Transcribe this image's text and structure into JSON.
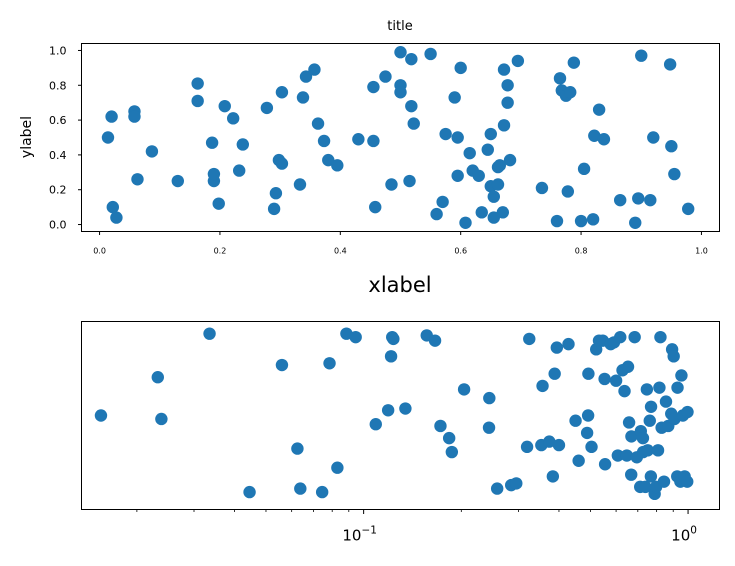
{
  "chart_data": [
    {
      "type": "scatter",
      "title": "title",
      "xlabel": "xlabel",
      "ylabel": "ylabel",
      "xlim": [
        -0.03,
        1.03
      ],
      "ylim": [
        -0.04,
        1.04
      ],
      "xticks": [
        {
          "value": 0.0,
          "label": "0.0"
        },
        {
          "value": 0.2,
          "label": "0.2"
        },
        {
          "value": 0.4,
          "label": "0.4"
        },
        {
          "value": 0.6,
          "label": "0.6"
        },
        {
          "value": 0.8,
          "label": "0.8"
        },
        {
          "value": 1.0,
          "label": "1.0"
        }
      ],
      "yticks": [
        {
          "value": 0.0,
          "label": "0.0"
        },
        {
          "value": 0.2,
          "label": "0.2"
        },
        {
          "value": 0.4,
          "label": "0.4"
        },
        {
          "value": 0.6,
          "label": "0.6"
        },
        {
          "value": 0.8,
          "label": "0.8"
        },
        {
          "value": 1.0,
          "label": "1.0"
        }
      ],
      "grid": false,
      "color": "#1f77b4",
      "points": [
        [
          0.014,
          0.5
        ],
        [
          0.02,
          0.62
        ],
        [
          0.022,
          0.1
        ],
        [
          0.028,
          0.04
        ],
        [
          0.058,
          0.65
        ],
        [
          0.058,
          0.62
        ],
        [
          0.063,
          0.26
        ],
        [
          0.087,
          0.42
        ],
        [
          0.13,
          0.25
        ],
        [
          0.163,
          0.81
        ],
        [
          0.163,
          0.71
        ],
        [
          0.187,
          0.47
        ],
        [
          0.19,
          0.25
        ],
        [
          0.19,
          0.29
        ],
        [
          0.198,
          0.12
        ],
        [
          0.208,
          0.68
        ],
        [
          0.222,
          0.61
        ],
        [
          0.232,
          0.31
        ],
        [
          0.238,
          0.46
        ],
        [
          0.278,
          0.67
        ],
        [
          0.29,
          0.09
        ],
        [
          0.293,
          0.18
        ],
        [
          0.298,
          0.37
        ],
        [
          0.303,
          0.76
        ],
        [
          0.303,
          0.35
        ],
        [
          0.333,
          0.23
        ],
        [
          0.338,
          0.73
        ],
        [
          0.343,
          0.85
        ],
        [
          0.357,
          0.89
        ],
        [
          0.363,
          0.58
        ],
        [
          0.373,
          0.48
        ],
        [
          0.38,
          0.37
        ],
        [
          0.395,
          0.34
        ],
        [
          0.43,
          0.49
        ],
        [
          0.455,
          0.79
        ],
        [
          0.455,
          0.48
        ],
        [
          0.458,
          0.1
        ],
        [
          0.475,
          0.85
        ],
        [
          0.485,
          0.23
        ],
        [
          0.5,
          0.99
        ],
        [
          0.5,
          0.8
        ],
        [
          0.5,
          0.76
        ],
        [
          0.515,
          0.25
        ],
        [
          0.518,
          0.95
        ],
        [
          0.518,
          0.68
        ],
        [
          0.522,
          0.58
        ],
        [
          0.55,
          0.98
        ],
        [
          0.56,
          0.06
        ],
        [
          0.57,
          0.13
        ],
        [
          0.575,
          0.52
        ],
        [
          0.59,
          0.73
        ],
        [
          0.595,
          0.28
        ],
        [
          0.595,
          0.5
        ],
        [
          0.6,
          0.9
        ],
        [
          0.608,
          0.01
        ],
        [
          0.615,
          0.41
        ],
        [
          0.62,
          0.31
        ],
        [
          0.63,
          0.28
        ],
        [
          0.635,
          0.07
        ],
        [
          0.645,
          0.43
        ],
        [
          0.65,
          0.22
        ],
        [
          0.65,
          0.52
        ],
        [
          0.655,
          0.04
        ],
        [
          0.655,
          0.16
        ],
        [
          0.662,
          0.33
        ],
        [
          0.662,
          0.23
        ],
        [
          0.665,
          0.34
        ],
        [
          0.67,
          0.07
        ],
        [
          0.672,
          0.89
        ],
        [
          0.672,
          0.57
        ],
        [
          0.678,
          0.8
        ],
        [
          0.678,
          0.7
        ],
        [
          0.682,
          0.37
        ],
        [
          0.695,
          0.94
        ],
        [
          0.735,
          0.21
        ],
        [
          0.76,
          0.02
        ],
        [
          0.765,
          0.84
        ],
        [
          0.768,
          0.77
        ],
        [
          0.775,
          0.74
        ],
        [
          0.778,
          0.19
        ],
        [
          0.782,
          0.76
        ],
        [
          0.788,
          0.93
        ],
        [
          0.8,
          0.02
        ],
        [
          0.805,
          0.32
        ],
        [
          0.82,
          0.03
        ],
        [
          0.822,
          0.51
        ],
        [
          0.83,
          0.66
        ],
        [
          0.838,
          0.49
        ],
        [
          0.865,
          0.14
        ],
        [
          0.89,
          0.01
        ],
        [
          0.895,
          0.15
        ],
        [
          0.9,
          0.97
        ],
        [
          0.915,
          0.14
        ],
        [
          0.92,
          0.5
        ],
        [
          0.948,
          0.92
        ],
        [
          0.95,
          0.45
        ],
        [
          0.955,
          0.29
        ],
        [
          0.978,
          0.09
        ]
      ]
    },
    {
      "type": "scatter",
      "xscale": "log",
      "xlim": [
        0.0135,
        1.25
      ],
      "ylim": [
        -0.04,
        1.04
      ],
      "xticks": [
        {
          "value": 0.1,
          "base": "10",
          "exp": "−1"
        },
        {
          "value": 1.0,
          "base": "10",
          "exp": "0"
        }
      ],
      "yticks": [],
      "grid": false,
      "color": "#1f77b4",
      "points": [
        [
          0.0155,
          0.5
        ],
        [
          0.0232,
          0.72
        ],
        [
          0.0238,
          0.48
        ],
        [
          0.0335,
          0.97
        ],
        [
          0.0445,
          0.06
        ],
        [
          0.056,
          0.79
        ],
        [
          0.0625,
          0.31
        ],
        [
          0.0638,
          0.08
        ],
        [
          0.0745,
          0.06
        ],
        [
          0.0785,
          0.8
        ],
        [
          0.083,
          0.2
        ],
        [
          0.0885,
          0.97
        ],
        [
          0.0945,
          0.95
        ],
        [
          0.109,
          0.45
        ],
        [
          0.119,
          0.53
        ],
        [
          0.1215,
          0.84
        ],
        [
          0.1225,
          0.95
        ],
        [
          0.1235,
          0.94
        ],
        [
          0.1345,
          0.54
        ],
        [
          0.1565,
          0.96
        ],
        [
          0.166,
          0.93
        ],
        [
          0.1725,
          0.44
        ],
        [
          0.1835,
          0.37
        ],
        [
          0.187,
          0.29
        ],
        [
          0.204,
          0.65
        ],
        [
          0.2435,
          0.43
        ],
        [
          0.244,
          0.6
        ],
        [
          0.258,
          0.08
        ],
        [
          0.285,
          0.1
        ],
        [
          0.2955,
          0.11
        ],
        [
          0.319,
          0.32
        ],
        [
          0.324,
          0.94
        ],
        [
          0.353,
          0.33
        ],
        [
          0.356,
          0.67
        ],
        [
          0.3735,
          0.35
        ],
        [
          0.383,
          0.15
        ],
        [
          0.388,
          0.74
        ],
        [
          0.394,
          0.89
        ],
        [
          0.4,
          0.33
        ],
        [
          0.428,
          0.91
        ],
        [
          0.45,
          0.47
        ],
        [
          0.46,
          0.24
        ],
        [
          0.4885,
          0.4
        ],
        [
          0.492,
          0.5
        ],
        [
          0.493,
          0.74
        ],
        [
          0.504,
          0.32
        ],
        [
          0.521,
          0.88
        ],
        [
          0.5315,
          0.93
        ],
        [
          0.546,
          0.93
        ],
        [
          0.553,
          0.71
        ],
        [
          0.555,
          0.22
        ],
        [
          0.5775,
          0.91
        ],
        [
          0.591,
          0.92
        ],
        [
          0.6,
          0.7
        ],
        [
          0.6075,
          0.27
        ],
        [
          0.618,
          0.95
        ],
        [
          0.628,
          0.76
        ],
        [
          0.637,
          0.64
        ],
        [
          0.6475,
          0.27
        ],
        [
          0.653,
          0.78
        ],
        [
          0.658,
          0.46
        ],
        [
          0.668,
          0.16
        ],
        [
          0.669,
          0.38
        ],
        [
          0.6845,
          0.95
        ],
        [
          0.695,
          0.26
        ],
        [
          0.712,
          0.09
        ],
        [
          0.715,
          0.41
        ],
        [
          0.726,
          0.37
        ],
        [
          0.727,
          0.29
        ],
        [
          0.7385,
          0.09
        ],
        [
          0.7465,
          0.65
        ],
        [
          0.751,
          0.3
        ],
        [
          0.762,
          0.47
        ],
        [
          0.768,
          0.15
        ],
        [
          0.769,
          0.55
        ],
        [
          0.789,
          0.05
        ],
        [
          0.797,
          0.09
        ],
        [
          0.808,
          0.3
        ],
        [
          0.816,
          0.66
        ],
        [
          0.822,
          0.95
        ],
        [
          0.829,
          0.43
        ],
        [
          0.843,
          0.12
        ],
        [
          0.855,
          0.58
        ],
        [
          0.869,
          0.44
        ],
        [
          0.8875,
          0.51
        ],
        [
          0.893,
          0.88
        ],
        [
          0.903,
          0.84
        ],
        [
          0.908,
          0.48
        ],
        [
          0.926,
          0.15
        ],
        [
          0.928,
          0.66
        ],
        [
          0.947,
          0.12
        ],
        [
          0.954,
          0.73
        ],
        [
          0.964,
          0.5
        ],
        [
          0.976,
          0.15
        ],
        [
          0.994,
          0.12
        ],
        [
          0.996,
          0.52
        ]
      ]
    }
  ]
}
